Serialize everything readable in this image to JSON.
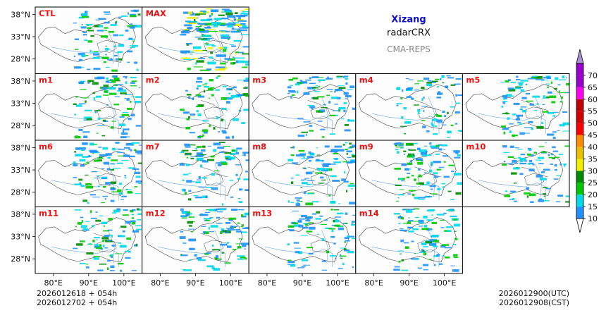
{
  "chart_data": {
    "type": "heatmap",
    "title": "Xizang",
    "variable": "radarCRX",
    "model": "CMA-REPS",
    "colors": {
      "member_label": "#ee1111",
      "coast": "#444444",
      "river": "#6aa8e8",
      "frame": "#000000"
    },
    "panels": [
      {
        "label": "CTL",
        "intensity": 0.45
      },
      {
        "label": "MAX",
        "intensity": 1.0
      },
      {
        "label": "m1",
        "intensity": 0.5
      },
      {
        "label": "m2",
        "intensity": 0.35
      },
      {
        "label": "m3",
        "intensity": 0.45
      },
      {
        "label": "m4",
        "intensity": 0.35
      },
      {
        "label": "m5",
        "intensity": 0.55
      },
      {
        "label": "m6",
        "intensity": 0.55
      },
      {
        "label": "m7",
        "intensity": 0.45
      },
      {
        "label": "m8",
        "intensity": 0.5
      },
      {
        "label": "m9",
        "intensity": 0.55
      },
      {
        "label": "m10",
        "intensity": 0.4
      },
      {
        "label": "m11",
        "intensity": 0.45
      },
      {
        "label": "m12",
        "intensity": 0.55
      },
      {
        "label": "m13",
        "intensity": 0.45
      },
      {
        "label": "m14",
        "intensity": 0.5
      }
    ],
    "x_ticks": [
      "80°E",
      "90°E",
      "100°E"
    ],
    "y_ticks": [
      "38°N",
      "33°N",
      "28°N"
    ],
    "colorbar": {
      "levels": [
        "10",
        "15",
        "20",
        "25",
        "30",
        "35",
        "40",
        "45",
        "50",
        "55",
        "60",
        "65",
        "70"
      ],
      "colors": [
        "#1e90ff",
        "#00d8e8",
        "#00c800",
        "#008c00",
        "#f0f000",
        "#e8c000",
        "#ff8c00",
        "#ff0000",
        "#d40000",
        "#c00000",
        "#ff00f0",
        "#9900cc",
        "#ae90d8"
      ],
      "extend": "both"
    },
    "footer": {
      "init_utc": "2026012618  +  054h",
      "init_cst": "2026012702  +  054h",
      "valid_utc": "2026012900(UTC)",
      "valid_cst": "2026012908(CST)"
    }
  }
}
